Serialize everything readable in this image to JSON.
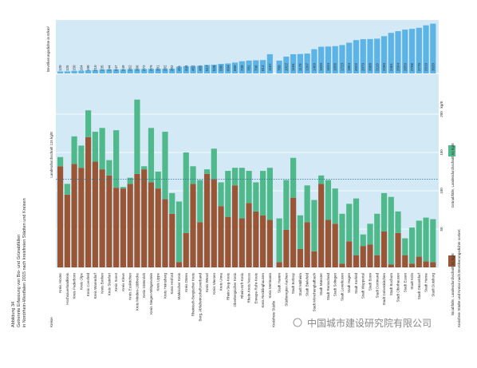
{
  "chart_data": {
    "type": "stacked-bar",
    "title": "Abbildung 34",
    "subtitle": "Getrennte Erfassung von Bio- und Grünabfällen",
    "subtitle2": "in Nordrhein-Westfalen 2015 nach kreisfreien Städten und Kreisen",
    "group_labels": [
      "Kreise",
      "Kreisfreie Städte"
    ],
    "group_sizes": [
      31,
      23
    ],
    "categories": [
      "Kreis Höxter",
      "Hochsauerlandkreis",
      "Kreis Paderborn",
      "Kreis Olpe",
      "Kreis Coesfeld",
      "Kreis Warendorf",
      "Kreis Borken",
      "Kreis Steinfurt",
      "Kreis Soest",
      "Kreis Kleve",
      "Kreis Euskirchen",
      "Kreis Minden-Lübbecke",
      "Kreis Gütersloh",
      "Kreis Siegen-Wittgenstein",
      "Kreis Lippe",
      "Kreis Heinsberg",
      "Kreis Herford",
      "Märkischer Kreis",
      "Kreis Düren",
      "Rheinisch-Bergischer Kreis",
      "Berg. Abfallwirtschaftsverband",
      "Kreis Wesel",
      "Kreis Viersen",
      "Kreis Unna",
      "Rhein-Sieg-Kreis",
      "Oberbergischer Kreis",
      "Rhein-Erft-Kreis",
      "Rhein-Kreis Neuss",
      "Ennepe-Ruhr-Kreis",
      "Kreis Recklinghausen",
      "Kreis Mettmann",
      "Stadt Hamm",
      "Städteregion Aachen",
      "Stadt Bottrop",
      "Stadt Mülheim",
      "Stadt Bielefeld",
      "Stadt Mönchengladbach",
      "Stadt Münster",
      "Stadt Remscheid",
      "Stadt Solingen",
      "Stadt Leverkusen",
      "Stadt Hagen",
      "Stadt Krefeld",
      "Stadt Wuppertal",
      "Stadt Bonn",
      "Stadt Dortmund",
      "Stadt Gelsenkirchen",
      "Stadt Bochum",
      "Stadt Oberhausen",
      "Stadt Essen",
      "Stadt Köln",
      "Stadt Düsseldorf",
      "Stadt Herne",
      "Stadt Duisburg"
    ],
    "series": [
      {
        "name": "Bioabfälle, Landesdurchschnitt 61 kg/E",
        "color": "#9a5535",
        "values": [
          132,
          95,
          135,
          130,
          170,
          138,
          128,
          120,
          104,
          103,
          109,
          122,
          128,
          111,
          103,
          89,
          70,
          7,
          45,
          109,
          59,
          122,
          115,
          80,
          66,
          107,
          64,
          84,
          73,
          68,
          62,
          7,
          49,
          91,
          24,
          59,
          21,
          109,
          62,
          57,
          5,
          34,
          16,
          28,
          30,
          16,
          47,
          4,
          45,
          16,
          5,
          14,
          8,
          7
        ]
      },
      {
        "name": "Grünabfälle, Landesdurchschnitt 54 kg/E",
        "color": "#4fb98b",
        "values": [
          12,
          14,
          36,
          29,
          35,
          39,
          54,
          20,
          75,
          2,
          8,
          97,
          4,
          71,
          22,
          88,
          27,
          79,
          105,
          23,
          55,
          6,
          40,
          31,
          60,
          23,
          66,
          42,
          38,
          58,
          68,
          57,
          65,
          52,
          44,
          48,
          67,
          11,
          52,
          46,
          65,
          49,
          74,
          15,
          27,
          54,
          50,
          88,
          28,
          22,
          47,
          47,
          57,
          56
        ]
      }
    ],
    "ylim": [
      0,
      250
    ],
    "yticks": [
      50,
      100,
      150,
      200
    ],
    "y_unit": "kg/E",
    "grid": true,
    "reference_line": {
      "value": 115,
      "label": "Landesdurchschnitt 115 kg/E"
    },
    "density": {
      "label": "Bevölkerungsdichte in E/km²",
      "color": "#5bb3e6",
      "ylim": [
        0,
        3100
      ],
      "values": [
        120,
        125,
        150,
        164,
        190,
        210,
        235,
        244,
        247,
        249,
        262,
        266,
        272,
        279,
        281,
        282,
        292,
        411,
        444,
        452,
        465,
        517,
        526,
        580,
        604,
        660,
        739,
        781,
        796,
        812,
        1167,
        780,
        1022,
        1164,
        1178,
        1207,
        1469,
        1620,
        1634,
        1656,
        1723,
        1864,
        2022,
        2079,
        2088,
        2110,
        2260,
        2461,
        2564,
        2659,
        2706,
        2770,
        2919,
        3020
      ]
    },
    "note": "Kreisfreie Städte und Kreise nach Bevölkerungsdichte sortiert",
    "watermark": "中国城市建设研究院有限公司"
  }
}
